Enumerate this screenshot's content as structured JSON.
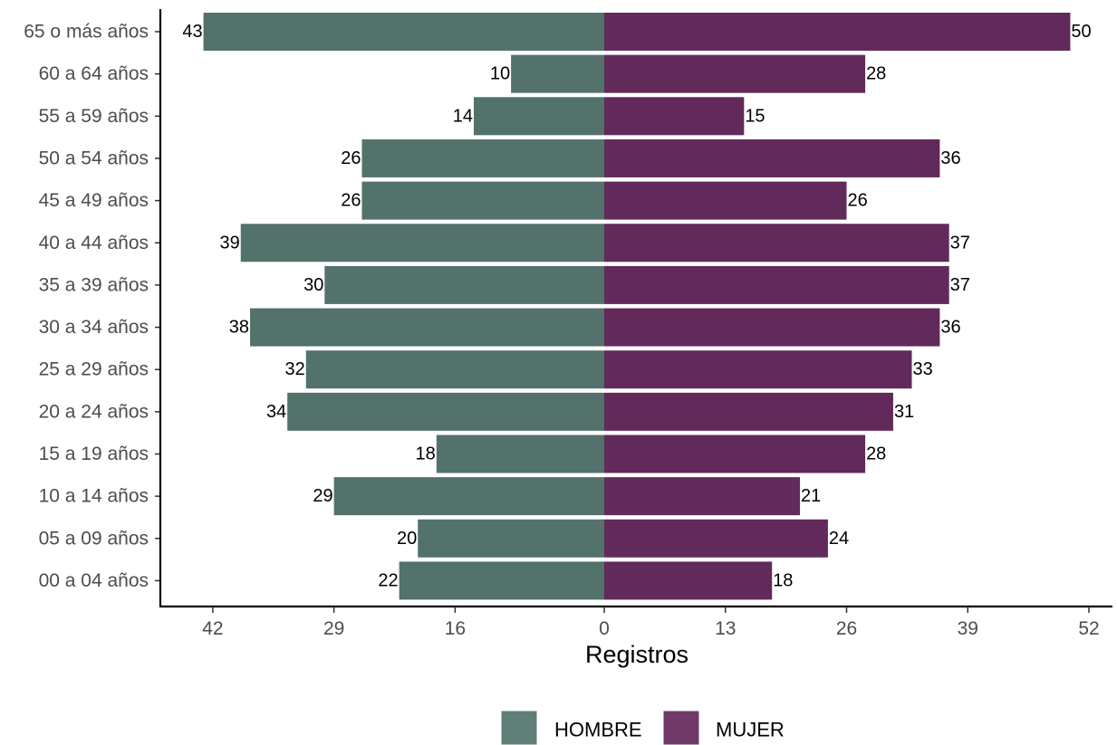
{
  "chart_data": {
    "type": "bar",
    "orientation": "horizontal",
    "layout": "population-pyramid",
    "xlabel": "Registros",
    "ylabel": "",
    "xlim": [
      -52,
      52
    ],
    "x_ticks": [
      -42,
      -29,
      -16,
      0,
      13,
      26,
      39,
      52
    ],
    "x_tick_labels": [
      "42",
      "29",
      "16",
      "0",
      "13",
      "26",
      "39",
      "52"
    ],
    "grid": false,
    "legend_position": "bottom",
    "categories": [
      "65 o más años",
      "60 a 64 años",
      "55 a 59 años",
      "50 a 54 años",
      "45 a 49 años",
      "40 a 44 años",
      "35 a 39 años",
      "30 a 34 años",
      "25 a 29 años",
      "20 a 24 años",
      "15 a 19 años",
      "10 a 14 años",
      "05 a 09 años",
      "00 a 04 años"
    ],
    "series": [
      {
        "name": "HOMBRE",
        "color": "#52726B",
        "side": "left",
        "values": [
          43,
          10,
          14,
          26,
          26,
          39,
          30,
          38,
          32,
          34,
          18,
          29,
          20,
          22
        ]
      },
      {
        "name": "MUJER",
        "color": "#612A5A",
        "side": "right",
        "values": [
          50,
          28,
          15,
          36,
          26,
          37,
          37,
          36,
          33,
          31,
          28,
          21,
          24,
          18
        ]
      }
    ]
  }
}
